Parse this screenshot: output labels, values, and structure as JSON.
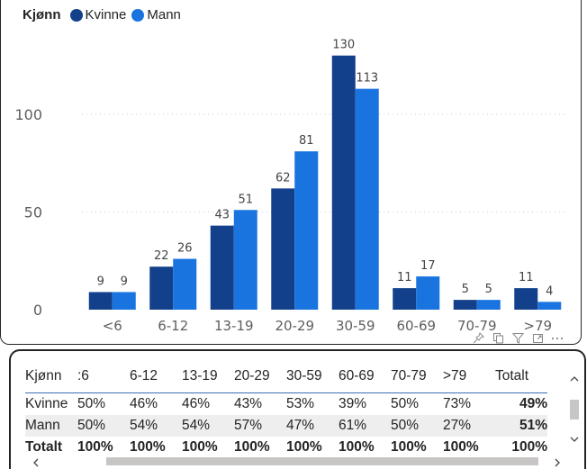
{
  "legend": {
    "title": "Kjønn",
    "items": [
      {
        "label": "Kvinne",
        "color": "#12408a"
      },
      {
        "label": "Mann",
        "color": "#1a74e0"
      }
    ]
  },
  "chart_data": {
    "type": "bar",
    "categories": [
      "<6",
      "6-12",
      "13-19",
      "20-29",
      "30-59",
      "60-69",
      "70-79",
      ">79"
    ],
    "series": [
      {
        "name": "Kvinne",
        "values": [
          9,
          22,
          43,
          62,
          130,
          11,
          5,
          11
        ],
        "color": "#12408a"
      },
      {
        "name": "Mann",
        "values": [
          9,
          26,
          51,
          81,
          113,
          17,
          5,
          4
        ],
        "color": "#1a74e0"
      }
    ],
    "y_ticks": [
      0,
      50,
      100
    ],
    "ylim": [
      0,
      140
    ],
    "grid": true,
    "legend_position": "top-left"
  },
  "toolbar": {
    "icons": [
      "pin-icon",
      "copy-icon",
      "filter-icon",
      "focus-icon",
      "more-icon"
    ]
  },
  "matrix": {
    "header": [
      "Kjønn",
      ":6",
      "6-12",
      "13-19",
      "20-29",
      "30-59",
      "60-69",
      "70-79",
      ">79",
      "Totalt"
    ],
    "rows": [
      {
        "label": "Kvinne",
        "cells": [
          "50%",
          "46%",
          "46%",
          "43%",
          "53%",
          "39%",
          "50%",
          "73%",
          "49%"
        ]
      },
      {
        "label": "Mann",
        "cells": [
          "50%",
          "54%",
          "54%",
          "57%",
          "47%",
          "61%",
          "50%",
          "27%",
          "51%"
        ]
      },
      {
        "label": "Totalt",
        "cells": [
          "100%",
          "100%",
          "100%",
          "100%",
          "100%",
          "100%",
          "100%",
          "100%",
          "100%"
        ]
      }
    ]
  }
}
